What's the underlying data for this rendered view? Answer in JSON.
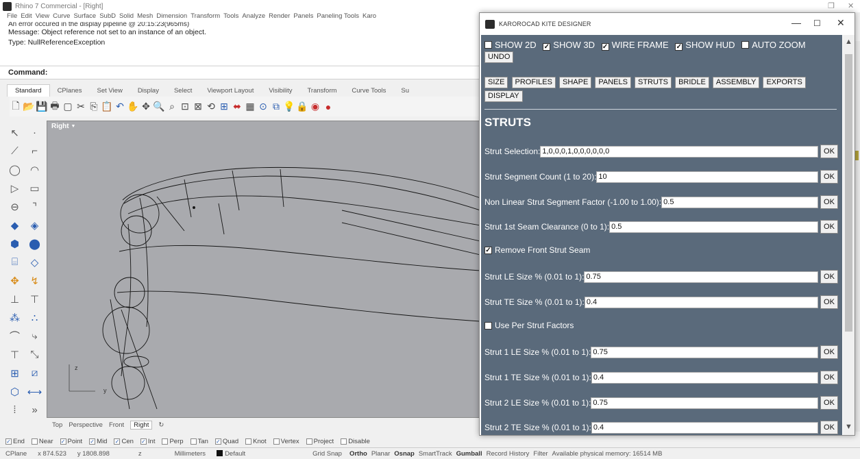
{
  "rhino": {
    "window_title": "Rhino 7 Commercial - [Right]",
    "menu": [
      "File",
      "Edit",
      "View",
      "Curve",
      "Surface",
      "SubD",
      "Solid",
      "Mesh",
      "Dimension",
      "Transform",
      "Tools",
      "Analyze",
      "Render",
      "Panels",
      "Paneling Tools",
      "Karo"
    ],
    "history": {
      "error_line": "An error occured in the display pipeline @ 20:15:23(965ms)",
      "message": "Message: Object reference not set to an instance of an object.",
      "type": "Type: NullReferenceException"
    },
    "command_label": "Command:",
    "toolbar_tabs": [
      "Standard",
      "CPlanes",
      "Set View",
      "Display",
      "Select",
      "Viewport Layout",
      "Visibility",
      "Transform",
      "Curve Tools",
      "Su"
    ],
    "viewport": {
      "title": "Right",
      "axis_z": "z",
      "axis_y": "y"
    },
    "viewport_tabs": [
      "Top",
      "Perspective",
      "Front",
      "Right",
      "↻"
    ],
    "osnaps": [
      {
        "label": "End",
        "checked": true
      },
      {
        "label": "Near",
        "checked": false
      },
      {
        "label": "Point",
        "checked": true
      },
      {
        "label": "Mid",
        "checked": true
      },
      {
        "label": "Cen",
        "checked": true
      },
      {
        "label": "Int",
        "checked": true
      },
      {
        "label": "Perp",
        "checked": false
      },
      {
        "label": "Tan",
        "checked": false
      },
      {
        "label": "Quad",
        "checked": true
      },
      {
        "label": "Knot",
        "checked": false
      },
      {
        "label": "Vertex",
        "checked": false
      },
      {
        "label": "Project",
        "checked": false
      },
      {
        "label": "Disable",
        "checked": false
      }
    ],
    "status": {
      "cplane": "CPlane",
      "x": "x 874.523",
      "y": "y 1808.898",
      "z": "z",
      "units": "Millimeters",
      "layer": "Default",
      "grid_snap": "Grid Snap",
      "ortho": "Ortho",
      "planar": "Planar",
      "osnap": "Osnap",
      "smarttrack": "SmartTrack",
      "gumball": "Gumball",
      "record_history": "Record History",
      "filter": "Filter",
      "memory": "Available physical memory: 16514 MB"
    }
  },
  "dialog": {
    "title": "KAROROCAD KITE DESIGNER",
    "window_controls": {
      "minimize": "—",
      "maximize": "☐",
      "close": "✕"
    },
    "display_options": [
      {
        "label": "SHOW 2D",
        "checked": false
      },
      {
        "label": "SHOW 3D",
        "checked": true
      },
      {
        "label": "WIRE FRAME",
        "checked": true
      },
      {
        "label": "SHOW HUD",
        "checked": true
      },
      {
        "label": "AUTO ZOOM",
        "checked": false
      }
    ],
    "undo_label": "UNDO",
    "nav_buttons": [
      "SIZE",
      "PROFILES",
      "SHAPE",
      "PANELS",
      "STRUTS",
      "BRIDLE",
      "ASSEMBLY",
      "EXPORTS",
      "DISPLAY"
    ],
    "section_title": "STRUTS",
    "ok_label": "OK",
    "fields": {
      "strut_selection": {
        "label": "Strut Selection:",
        "value": "1,0,0,0,1,0,0,0,0,0,0"
      },
      "segment_count": {
        "label": "Strut Segment Count (1 to 20):",
        "value": "10"
      },
      "nonlinear_factor": {
        "label": "Non Linear Strut Segment Factor (-1.00 to 1.00):",
        "value": "0.5"
      },
      "seam_clearance": {
        "label": "Strut 1st Seam Clearance (0 to 1):",
        "value": "0.5"
      },
      "le_size": {
        "label": "Strut LE Size % (0.01 to 1):",
        "value": "0.75"
      },
      "te_size": {
        "label": "Strut TE Size % (0.01 to 1):",
        "value": "0.4"
      },
      "s1_le": {
        "label": "Strut 1 LE Size % (0.01 to 1):",
        "value": "0.75"
      },
      "s1_te": {
        "label": "Strut 1 TE Size % (0.01 to 1):",
        "value": "0.4"
      },
      "s2_le": {
        "label": "Strut 2 LE Size % (0.01 to 1):",
        "value": "0.75"
      },
      "s2_te": {
        "label": "Strut 2 TE Size % (0.01 to 1):",
        "value": "0.4"
      }
    },
    "remove_front_seam": {
      "label": "Remove Front Strut Seam",
      "checked": true
    },
    "use_per_strut": {
      "label": "Use Per Strut Factors",
      "checked": false
    }
  }
}
